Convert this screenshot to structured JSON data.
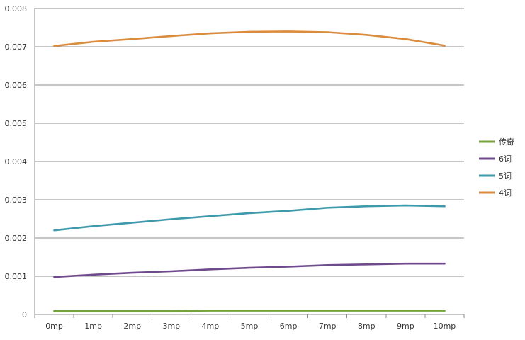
{
  "chart_data": {
    "type": "line",
    "title": "",
    "xlabel": "",
    "ylabel": "",
    "categories": [
      "0mp",
      "1mp",
      "2mp",
      "3mp",
      "4mp",
      "5mp",
      "6mp",
      "7mp",
      "8mp",
      "9mp",
      "10mp"
    ],
    "ylim": [
      0,
      0.008
    ],
    "yticks": [
      "0",
      "0.001",
      "0.002",
      "0.003",
      "0.004",
      "0.005",
      "0.006",
      "0.007",
      "0.008"
    ],
    "grid": "horizontal",
    "legend_position": "right",
    "series": [
      {
        "name": "传奇",
        "color": "#77a33c",
        "values": [
          9e-05,
          9e-05,
          9e-05,
          9e-05,
          0.0001,
          0.0001,
          0.0001,
          0.0001,
          0.0001,
          0.0001,
          0.0001
        ]
      },
      {
        "name": "6词",
        "color": "#6f4b8e",
        "values": [
          0.00098,
          0.00104,
          0.00109,
          0.00113,
          0.00118,
          0.00122,
          0.00125,
          0.00129,
          0.00131,
          0.00133,
          0.00133
        ]
      },
      {
        "name": "5词",
        "color": "#3e9aab",
        "values": [
          0.0022,
          0.00231,
          0.0024,
          0.00249,
          0.00257,
          0.00265,
          0.00271,
          0.00279,
          0.00283,
          0.00285,
          0.00283
        ]
      },
      {
        "name": "4词",
        "color": "#da8b3c",
        "values": [
          0.00702,
          0.00713,
          0.0072,
          0.00728,
          0.00735,
          0.00739,
          0.0074,
          0.00738,
          0.00731,
          0.0072,
          0.00703
        ]
      }
    ]
  }
}
